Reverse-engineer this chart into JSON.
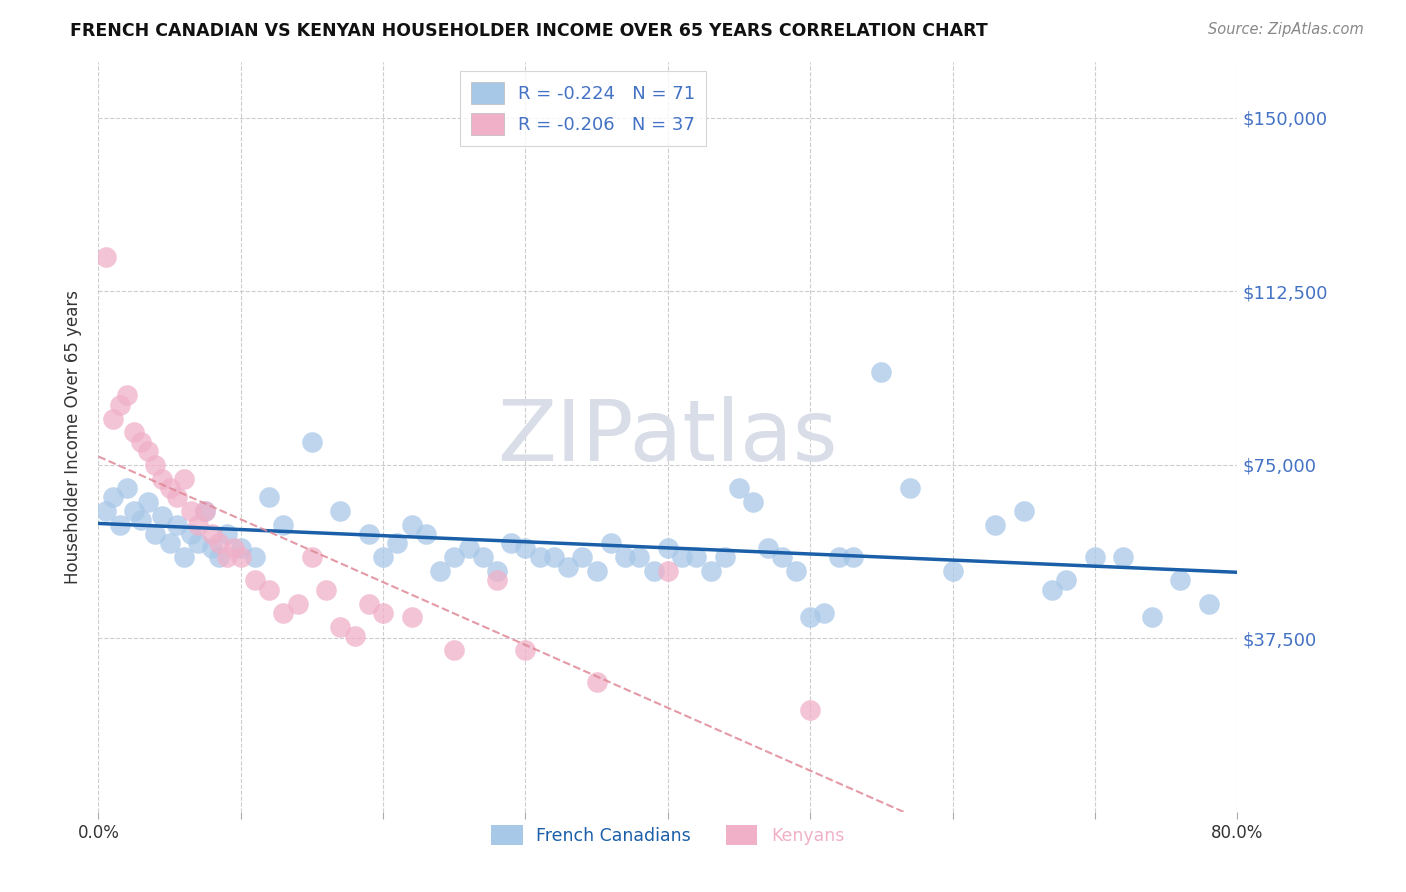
{
  "title": "FRENCH CANADIAN VS KENYAN HOUSEHOLDER INCOME OVER 65 YEARS CORRELATION CHART",
  "source": "Source: ZipAtlas.com",
  "ylabel": "Householder Income Over 65 years",
  "ytick_labels": [
    "$150,000",
    "$112,500",
    "$75,000",
    "$37,500"
  ],
  "ytick_values": [
    150000,
    112500,
    75000,
    37500
  ],
  "ymin": 0,
  "ymax": 162000,
  "xmin": 0.0,
  "xmax": 0.8,
  "legend_r1_text": "R = -0.224   N = 71",
  "legend_r2_text": "R = -0.206   N = 37",
  "legend_label1": "French Canadians",
  "legend_label2": "Kenyans",
  "blue_scatter_color": "#a8c8e8",
  "pink_scatter_color": "#f0b0c8",
  "trendline_blue_color": "#1a5fa8",
  "trendline_pink_color": "#e08898",
  "ytick_color": "#4472c4",
  "watermark_color": "#d8dde8",
  "blue_R": -0.224,
  "blue_N": 71,
  "pink_R": -0.206,
  "pink_N": 37,
  "blue_x": [
    0.005,
    0.01,
    0.015,
    0.02,
    0.025,
    0.03,
    0.035,
    0.04,
    0.045,
    0.05,
    0.055,
    0.06,
    0.065,
    0.07,
    0.075,
    0.08,
    0.085,
    0.09,
    0.1,
    0.11,
    0.12,
    0.13,
    0.15,
    0.17,
    0.19,
    0.2,
    0.21,
    0.22,
    0.23,
    0.24,
    0.25,
    0.26,
    0.27,
    0.28,
    0.29,
    0.3,
    0.31,
    0.32,
    0.33,
    0.34,
    0.35,
    0.36,
    0.37,
    0.38,
    0.39,
    0.4,
    0.41,
    0.42,
    0.43,
    0.44,
    0.45,
    0.46,
    0.47,
    0.48,
    0.49,
    0.5,
    0.51,
    0.52,
    0.53,
    0.55,
    0.57,
    0.6,
    0.63,
    0.65,
    0.67,
    0.68,
    0.7,
    0.72,
    0.74,
    0.76,
    0.78
  ],
  "blue_y": [
    65000,
    68000,
    62000,
    70000,
    65000,
    63000,
    67000,
    60000,
    64000,
    58000,
    62000,
    55000,
    60000,
    58000,
    65000,
    57000,
    55000,
    60000,
    57000,
    55000,
    68000,
    62000,
    80000,
    65000,
    60000,
    55000,
    58000,
    62000,
    60000,
    52000,
    55000,
    57000,
    55000,
    52000,
    58000,
    57000,
    55000,
    55000,
    53000,
    55000,
    52000,
    58000,
    55000,
    55000,
    52000,
    57000,
    55000,
    55000,
    52000,
    55000,
    70000,
    67000,
    57000,
    55000,
    52000,
    42000,
    43000,
    55000,
    55000,
    95000,
    70000,
    52000,
    62000,
    65000,
    48000,
    50000,
    55000,
    55000,
    42000,
    50000,
    45000
  ],
  "pink_x": [
    0.005,
    0.01,
    0.015,
    0.02,
    0.025,
    0.03,
    0.035,
    0.04,
    0.045,
    0.05,
    0.055,
    0.06,
    0.065,
    0.07,
    0.075,
    0.08,
    0.085,
    0.09,
    0.095,
    0.1,
    0.11,
    0.12,
    0.13,
    0.14,
    0.15,
    0.16,
    0.17,
    0.18,
    0.19,
    0.2,
    0.22,
    0.25,
    0.28,
    0.3,
    0.35,
    0.4,
    0.5
  ],
  "pink_y": [
    120000,
    85000,
    88000,
    90000,
    82000,
    80000,
    78000,
    75000,
    72000,
    70000,
    68000,
    72000,
    65000,
    62000,
    65000,
    60000,
    58000,
    55000,
    57000,
    55000,
    50000,
    48000,
    43000,
    45000,
    55000,
    48000,
    40000,
    38000,
    45000,
    43000,
    42000,
    35000,
    50000,
    35000,
    28000,
    52000,
    22000
  ]
}
